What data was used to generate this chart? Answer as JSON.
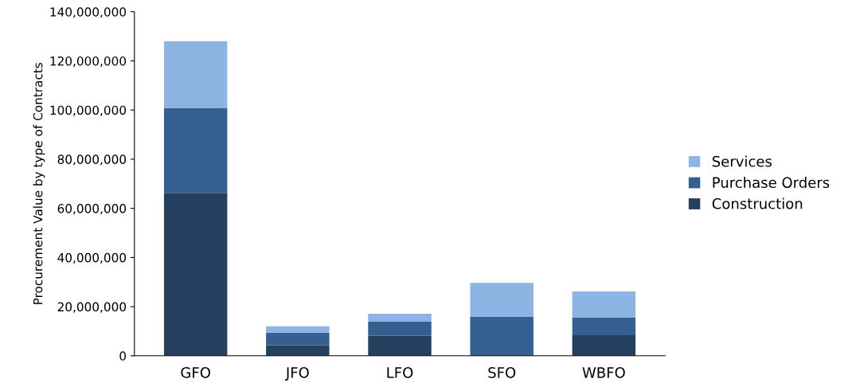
{
  "chart_data": {
    "type": "bar",
    "stacked": true,
    "ylabel": "Procurement Value by type of Contracts",
    "categories": [
      "GFO",
      "JFO",
      "LFO",
      "SFO",
      "WBFO"
    ],
    "series": [
      {
        "name": "Construction",
        "color": "#253f5e",
        "values": [
          66300000,
          4200000,
          8100000,
          0,
          8400000
        ]
      },
      {
        "name": "Purchase Orders",
        "color": "#355f8f",
        "values": [
          34600000,
          5200000,
          5800000,
          15800000,
          7100000
        ]
      },
      {
        "name": "Services",
        "color": "#8eb4e3",
        "values": [
          27100000,
          2600000,
          3200000,
          13900000,
          10700000
        ]
      }
    ],
    "ylim": [
      0,
      140000000
    ],
    "yticks": [
      {
        "value": 0,
        "label": "0"
      },
      {
        "value": 20000000,
        "label": "20,000,000"
      },
      {
        "value": 40000000,
        "label": "40,000,000"
      },
      {
        "value": 60000000,
        "label": "60,000,000"
      },
      {
        "value": 80000000,
        "label": "80,000,000"
      },
      {
        "value": 100000000,
        "label": "100,000,000"
      },
      {
        "value": 120000000,
        "label": "120,000,000"
      },
      {
        "value": 140000000,
        "label": "140,000,000"
      }
    ],
    "grid": false,
    "legend": "right"
  }
}
